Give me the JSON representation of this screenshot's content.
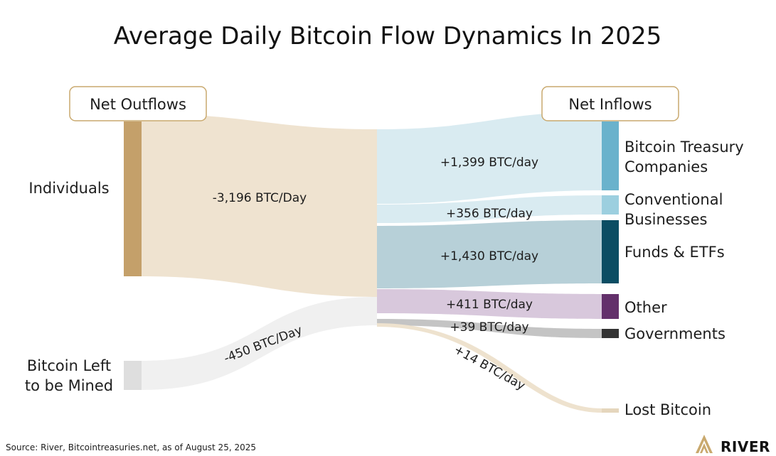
{
  "title": "Average Daily Bitcoin Flow Dynamics In 2025",
  "headers": {
    "outflows": "Net Outflows",
    "inflows": "Net Inflows"
  },
  "sources": {
    "individuals": {
      "label": "Individuals",
      "color": "#c4a06a"
    },
    "mining": {
      "lines": [
        "Bitcoin Left",
        "to be Mined"
      ],
      "color": "#dedede"
    }
  },
  "flows": {
    "individuals_out": "-3,196 BTC/Day",
    "mining_out": "-450 BTC/Day",
    "treasury": "+1,399 BTC/day",
    "businesses": "+356 BTC/day",
    "funds": "+1,430 BTC/day",
    "other": "+411 BTC/day",
    "governments": "+39 BTC/day",
    "lost": "+14 BTC/day"
  },
  "targets": {
    "treasury": {
      "lines": [
        "Bitcoin Treasury",
        "Companies"
      ],
      "color": "#6ab2cc"
    },
    "businesses": {
      "lines": [
        "Conventional",
        "Businesses"
      ],
      "color": "#9ccfdf"
    },
    "funds": {
      "lines": [
        "Funds & ETFs"
      ],
      "color": "#0b4d63"
    },
    "other": {
      "lines": [
        "Other"
      ],
      "color": "#63306b"
    },
    "governments": {
      "lines": [
        "Governments"
      ],
      "color": "#333333"
    },
    "lost": {
      "lines": [
        "Lost Bitcoin"
      ],
      "color": "#e5d6bd"
    }
  },
  "band_colors": {
    "individuals": "#efe3d0",
    "mining": "#f0f0f0",
    "treasury": "#d9ebf1",
    "businesses": "#d9ebf1",
    "funds": "#b7d0d8",
    "other": "#d8c8dc",
    "governments": "#c4c4c4",
    "lost": "#eee2ce"
  },
  "source_note": "Source: River, Bitcointreasuries.net, as of August 25, 2025",
  "logo": "RIVER"
}
